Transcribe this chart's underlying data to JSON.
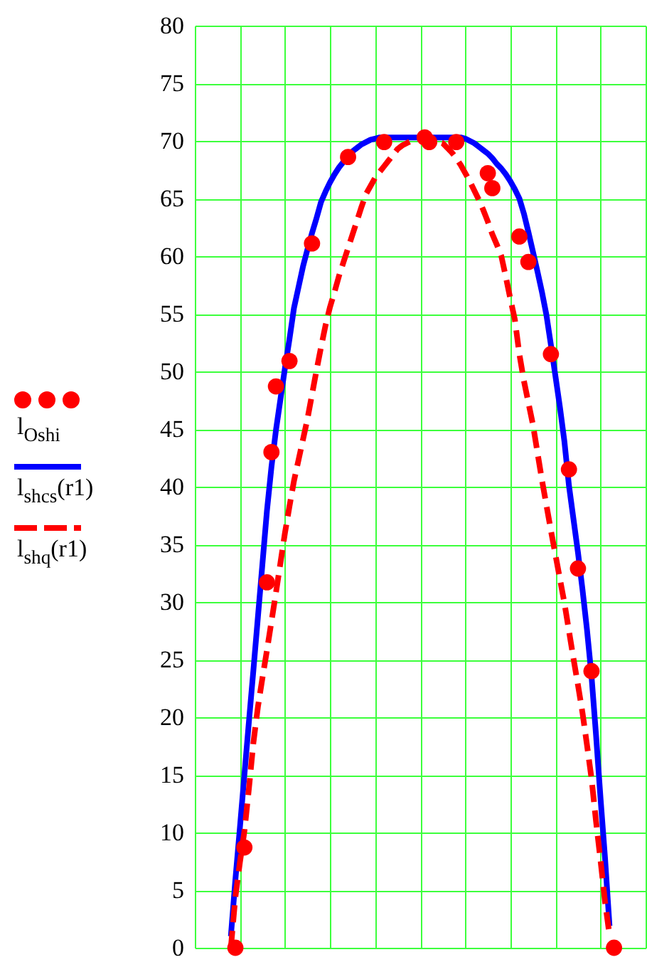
{
  "chart_data": {
    "type": "line",
    "categories": [
      null,
      null,
      null,
      null,
      null,
      null,
      null,
      null,
      null,
      null,
      null,
      null,
      null,
      null,
      null,
      null,
      null,
      null,
      null,
      null,
      null,
      null,
      null,
      null,
      null,
      null,
      null,
      null,
      null,
      null,
      null,
      null,
      null,
      null,
      null,
      null,
      null,
      null,
      null,
      null,
      null,
      null,
      null,
      null,
      null,
      null,
      null,
      null,
      null,
      null,
      null,
      null,
      null,
      null,
      null,
      null,
      null,
      null,
      null,
      null,
      null,
      null,
      null,
      null,
      null,
      null,
      null,
      null,
      null,
      null,
      null,
      null,
      null,
      null,
      null,
      null,
      null,
      null,
      null,
      null,
      null,
      null,
      null,
      null,
      null,
      null,
      null,
      null,
      null,
      null,
      null,
      null,
      null,
      null,
      null,
      null,
      null,
      null,
      null,
      null,
      null
    ],
    "series": [
      {
        "name": "l$_{Osh}$$_{i}$",
        "type": "scatter",
        "marker": "circle",
        "color": "#ff0000",
        "values": [
          null,
          null,
          null,
          null,
          null,
          null,
          null,
          null,
          null,
          0,
          null,
          8.7,
          null,
          null,
          null,
          null,
          31.7,
          43,
          48.7,
          null,
          null,
          50.9,
          null,
          null,
          null,
          null,
          61.1,
          null,
          null,
          null,
          null,
          null,
          null,
          null,
          68.6,
          null,
          null,
          null,
          null,
          null,
          null,
          null,
          69.9,
          null,
          null,
          null,
          null,
          null,
          null,
          null,
          null,
          70.3,
          69.9,
          null,
          null,
          null,
          null,
          null,
          69.9,
          null,
          null,
          null,
          null,
          null,
          null,
          67.2,
          65.9,
          null,
          null,
          null,
          null,
          null,
          61.7,
          null,
          59.5,
          null,
          null,
          null,
          null,
          51.5,
          null,
          null,
          null,
          41.5,
          null,
          32.9,
          null,
          null,
          24,
          null,
          null,
          null,
          null,
          0,
          null,
          null,
          null,
          null,
          null,
          null,
          null
        ]
      },
      {
        "name": "l$_{shcs}$(r1)",
        "line_style": "solid",
        "color": "#0000ff",
        "values": [
          null,
          null,
          null,
          null,
          null,
          null,
          null,
          null,
          1,
          5.9,
          10.4,
          15,
          19.6,
          24.1,
          28.7,
          33.3,
          37.9,
          41.7,
          44.9,
          47.6,
          50.3,
          52.8,
          55.5,
          57.3,
          59.1,
          60.6,
          62,
          63.3,
          64.7,
          65.6,
          66.4,
          67.1,
          67.7,
          68.2,
          68.7,
          69.1,
          69.4,
          69.7,
          69.9,
          70.1,
          70.2,
          70.3,
          70.3,
          70.3,
          70.3,
          70.3,
          70.3,
          70.3,
          70.3,
          70.3,
          70.3,
          70.3,
          70.3,
          70.3,
          70.3,
          70.3,
          70.3,
          70.3,
          70.3,
          70.3,
          70.2,
          70,
          69.8,
          69.5,
          69.2,
          68.9,
          68.5,
          68,
          67.6,
          67.1,
          66.5,
          65.8,
          65,
          63.7,
          62.1,
          60.4,
          58.7,
          56.9,
          54.9,
          52.3,
          49.6,
          46.9,
          43.9,
          40.1,
          37.2,
          34.3,
          31.1,
          27.6,
          23.6,
          18.5,
          13,
          7.8,
          1.9,
          null,
          null,
          null,
          null,
          null,
          null,
          null,
          null
        ]
      },
      {
        "name": "l$_{shq}$(r1)",
        "line_style": "dashed",
        "color": "#ff0000",
        "values": [
          null,
          null,
          null,
          null,
          null,
          null,
          null,
          null,
          0,
          4.4,
          7.4,
          10.1,
          13.8,
          17.8,
          20.9,
          23.4,
          25.8,
          28.3,
          30.8,
          33.4,
          36,
          38.3,
          40.5,
          42.3,
          44.1,
          45.9,
          48,
          50.1,
          52.1,
          54,
          55.6,
          56.9,
          58.3,
          59.5,
          60.7,
          61.9,
          63.1,
          64.3,
          65.4,
          66.1,
          66.8,
          67.3,
          67.8,
          68.3,
          68.8,
          69.3,
          69.6,
          69.8,
          70,
          70.2,
          70.3,
          70.2,
          70.2,
          70.1,
          69.9,
          69.8,
          69.4,
          69,
          68.5,
          67.9,
          67.2,
          66.5,
          65.7,
          64.9,
          64,
          63,
          61.9,
          61,
          60,
          58.2,
          56.3,
          54.5,
          51.5,
          49.2,
          47.3,
          45.4,
          43,
          40.6,
          38.4,
          36.2,
          34.1,
          32,
          29.9,
          27.5,
          25.1,
          22.8,
          20.4,
          17.6,
          14.7,
          11,
          7.6,
          4,
          1.1,
          null,
          null,
          null,
          null,
          null,
          null,
          null,
          null
        ]
      }
    ],
    "ylim": [
      0,
      80
    ],
    "yticks": [
      0,
      5,
      10,
      15,
      20,
      25,
      30,
      35,
      40,
      45,
      50,
      55,
      60,
      65,
      70,
      75,
      80
    ],
    "grid": true,
    "legend": "left",
    "tick_labels": "y"
  }
}
